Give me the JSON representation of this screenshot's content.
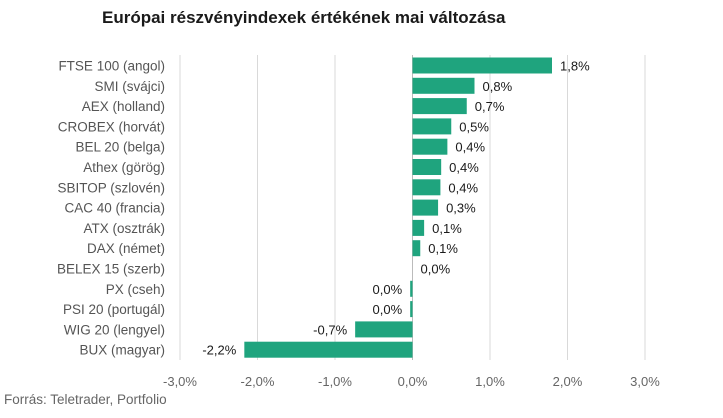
{
  "colors": {
    "bar": "#1fa47e",
    "grid": "#d9d9d9",
    "axis": "#bbbbbb"
  },
  "source": "Forrás: Teletrader, Portfolio",
  "chart_data": {
    "type": "bar",
    "orientation": "horizontal",
    "title": "Európai részvényindexek értékének mai változása",
    "categories": [
      "FTSE 100 (angol)",
      "SMI (svájci)",
      "AEX (holland)",
      "CROBEX (horvát)",
      "BEL 20 (belga)",
      "Athex (görög)",
      "SBITOP (szlovén)",
      "CAC 40 (francia)",
      "ATX (osztrák)",
      "DAX (német)",
      "BELEX 15 (szerb)",
      "PX (cseh)",
      "PSI 20 (portugál)",
      "WIG 20 (lengyel)",
      "BUX (magyar)"
    ],
    "values": [
      1.8,
      0.8,
      0.7,
      0.5,
      0.45,
      0.37,
      0.36,
      0.33,
      0.15,
      0.1,
      0.0,
      -0.03,
      -0.03,
      -0.74,
      -2.17
    ],
    "value_labels": [
      "1,8%",
      "0,8%",
      "0,7%",
      "0,5%",
      "0,4%",
      "0,4%",
      "0,4%",
      "0,3%",
      "0,1%",
      "0,1%",
      "0,0%",
      "0,0%",
      "0,0%",
      "-0,7%",
      "-2,2%"
    ],
    "xlim": [
      -3.0,
      3.0
    ],
    "xticks": [
      -3,
      -2,
      -1,
      0,
      1,
      2,
      3
    ],
    "xtick_labels": [
      "-3,0%",
      "-2,0%",
      "-1,0%",
      "0,0%",
      "1,0%",
      "2,0%",
      "3,0%"
    ],
    "grid": true
  }
}
